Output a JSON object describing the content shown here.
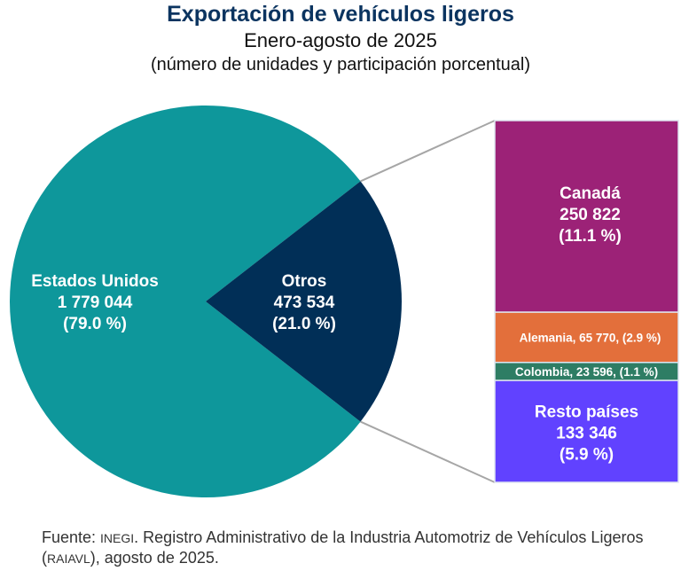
{
  "title": "Exportación de vehículos ligeros",
  "subtitle": "Enero-agosto de 2025",
  "subtitle2": "(número de unidades y participación porcentual)",
  "source": {
    "prefix": "Fuente: ",
    "org": "INEGI",
    "text1": ". Registro Administrativo de la Industria Automotriz de Vehículos Ligeros (",
    "abbr": "RAIAVL",
    "text2": "), agosto de 2025."
  },
  "chart_data": [
    {
      "type": "pie",
      "slices": [
        {
          "name": "Estados Unidos",
          "value": 1779044,
          "value_label": "1 779 044",
          "pct_label": "(79.0 %)",
          "pct": 79.0,
          "color": "#0e979b"
        },
        {
          "name": "Otros",
          "value": 473534,
          "value_label": "473 534",
          "pct_label": "(21.0 %)",
          "pct": 21.0,
          "color": "#012f57"
        }
      ]
    },
    {
      "type": "bar",
      "stacked": true,
      "breakdown_of": "Otros",
      "segments": [
        {
          "name": "Canadá",
          "value": 250822,
          "value_label": "250 822",
          "pct_label": "(11.1 %)",
          "color": "#9c2277"
        },
        {
          "name": "Alemania",
          "value": 65770,
          "label": "Alemania, 65 770, (2.9 %)",
          "color": "#e36f3b"
        },
        {
          "name": "Colombia",
          "value": 23596,
          "label": "Colombia,  23 596, (1.1 %)",
          "color": "#2e7d64"
        },
        {
          "name": "Resto países",
          "value": 133346,
          "value_label": "133 346",
          "pct_label": "(5.9 %)",
          "color": "#6142ff"
        }
      ]
    }
  ]
}
